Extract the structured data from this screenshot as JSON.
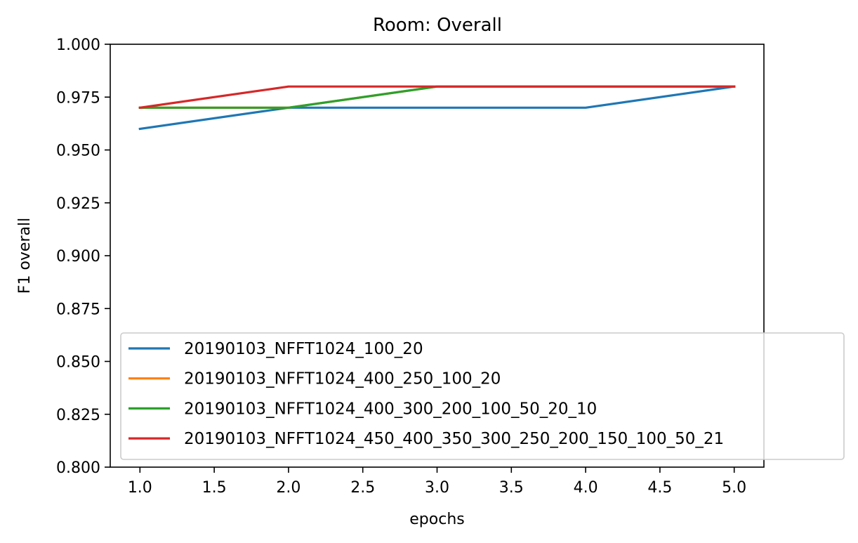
{
  "chart_data": {
    "type": "line",
    "title": "Room: Overall",
    "xlabel": "epochs",
    "ylabel": "F1 overall",
    "xlim": [
      0.8,
      5.2
    ],
    "ylim": [
      0.8,
      1.0
    ],
    "xticks": [
      1.0,
      1.5,
      2.0,
      2.5,
      3.0,
      3.5,
      4.0,
      4.5,
      5.0
    ],
    "xtick_labels": [
      "1.0",
      "1.5",
      "2.0",
      "2.5",
      "3.0",
      "3.5",
      "4.0",
      "4.5",
      "5.0"
    ],
    "yticks": [
      0.8,
      0.825,
      0.85,
      0.875,
      0.9,
      0.925,
      0.95,
      0.975,
      1.0
    ],
    "ytick_labels": [
      "0.800",
      "0.825",
      "0.850",
      "0.875",
      "0.900",
      "0.925",
      "0.950",
      "0.975",
      "1.000"
    ],
    "grid": false,
    "legend_position": "lower-right",
    "x": [
      1,
      2,
      3,
      4,
      5
    ],
    "series": [
      {
        "name": "20190103_NFFT1024_100_20",
        "color": "#1f77b4",
        "values": [
          0.96,
          0.97,
          0.97,
          0.97,
          0.98
        ]
      },
      {
        "name": "20190103_NFFT1024_400_250_100_20",
        "color": "#ff7f0e",
        "values": [
          0.97,
          0.97,
          0.98,
          0.98,
          0.98
        ]
      },
      {
        "name": "20190103_NFFT1024_400_300_200_100_50_20_10",
        "color": "#2ca02c",
        "values": [
          0.97,
          0.97,
          0.98,
          0.98,
          0.98
        ]
      },
      {
        "name": "20190103_NFFT1024_450_400_350_300_250_200_150_100_50_21",
        "color": "#d62728",
        "values": [
          0.97,
          0.98,
          0.98,
          0.98,
          0.98
        ]
      }
    ]
  }
}
